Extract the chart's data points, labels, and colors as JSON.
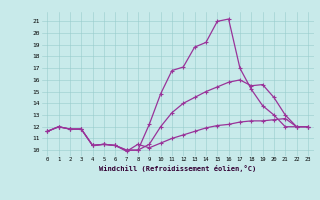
{
  "xlabel": "Windchill (Refroidissement éolien,°C)",
  "background_color": "#c8eaea",
  "line_color": "#993399",
  "xlim": [
    -0.5,
    23.5
  ],
  "ylim": [
    9.5,
    21.8
  ],
  "xticks": [
    0,
    1,
    2,
    3,
    4,
    5,
    6,
    7,
    8,
    9,
    10,
    11,
    12,
    13,
    14,
    15,
    16,
    17,
    18,
    19,
    20,
    21,
    22,
    23
  ],
  "yticks": [
    10,
    11,
    12,
    13,
    14,
    15,
    16,
    17,
    18,
    19,
    20,
    21
  ],
  "line1_x": [
    0,
    1,
    2,
    3,
    4,
    5,
    6,
    7,
    8,
    9,
    10,
    11,
    12,
    13,
    14,
    15,
    16,
    17,
    18,
    19,
    20,
    21,
    22,
    23
  ],
  "line1_y": [
    11.6,
    12.0,
    11.8,
    11.8,
    10.4,
    10.5,
    10.4,
    9.9,
    10.5,
    10.2,
    10.6,
    11.0,
    11.3,
    11.6,
    11.9,
    12.1,
    12.2,
    12.4,
    12.5,
    12.5,
    12.6,
    12.7,
    12.0,
    12.0
  ],
  "line2_x": [
    0,
    1,
    2,
    3,
    4,
    5,
    6,
    7,
    8,
    9,
    10,
    11,
    12,
    13,
    14,
    15,
    16,
    17,
    18,
    19,
    20,
    21,
    22,
    23
  ],
  "line2_y": [
    11.6,
    12.0,
    11.8,
    11.8,
    10.4,
    10.5,
    10.4,
    10.0,
    10.0,
    10.5,
    12.0,
    13.2,
    14.0,
    14.5,
    15.0,
    15.4,
    15.8,
    16.0,
    15.5,
    15.6,
    14.5,
    13.0,
    12.0,
    12.0
  ],
  "line3_x": [
    0,
    1,
    2,
    3,
    4,
    5,
    6,
    7,
    8,
    9,
    10,
    11,
    12,
    13,
    14,
    15,
    16,
    17,
    18,
    19,
    20,
    21,
    22,
    23
  ],
  "line3_y": [
    11.6,
    12.0,
    11.8,
    11.8,
    10.4,
    10.5,
    10.4,
    10.0,
    10.0,
    12.2,
    14.8,
    16.8,
    17.1,
    18.8,
    19.2,
    21.0,
    21.2,
    17.0,
    15.2,
    13.8,
    13.0,
    12.0,
    12.0,
    12.0
  ]
}
